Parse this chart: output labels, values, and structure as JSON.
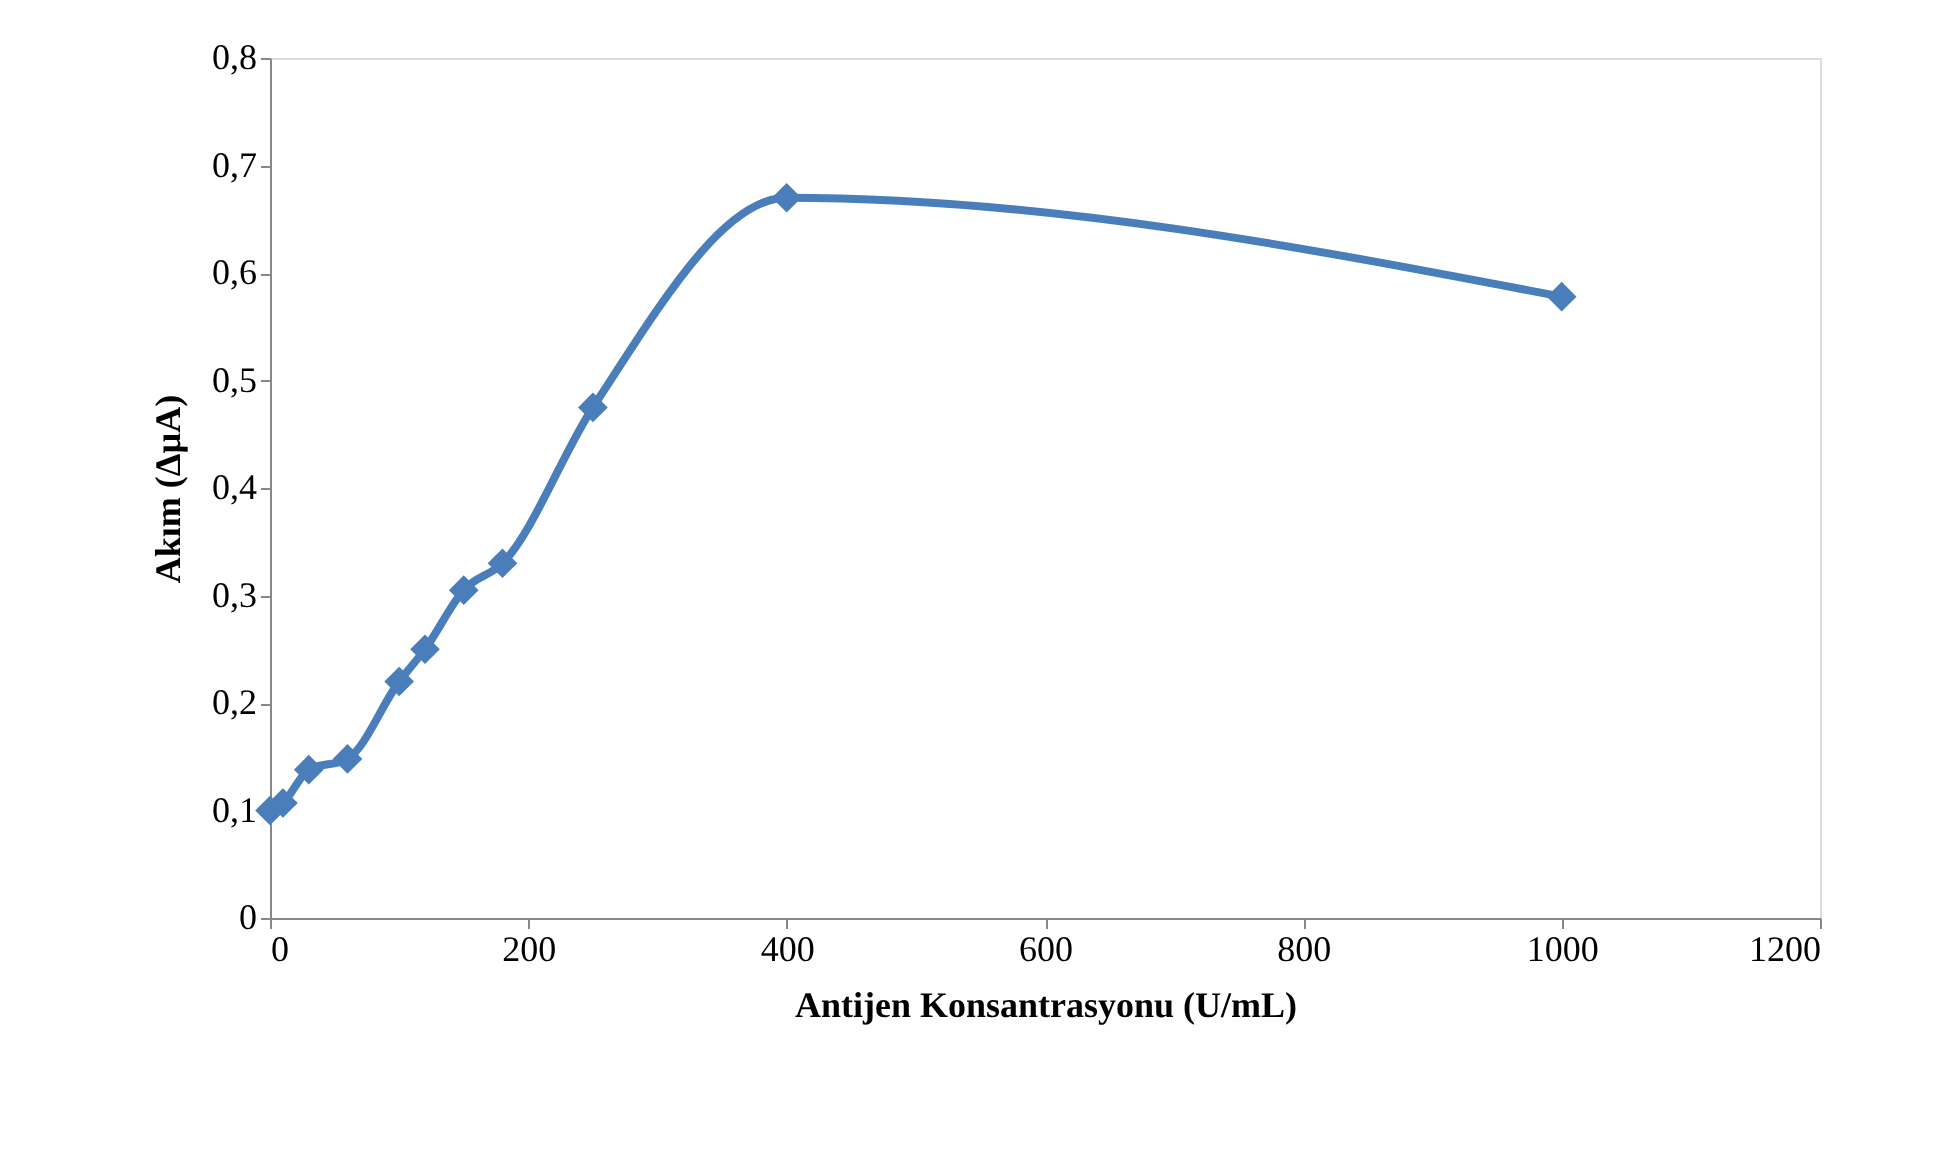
{
  "chart_data": {
    "type": "line",
    "xlabel": "Antijen Konsantrasyonu (U/mL)",
    "ylabel": "Akım (ΔµA)",
    "x": [
      0,
      10,
      30,
      60,
      100,
      120,
      150,
      180,
      250,
      400,
      1000
    ],
    "series": [
      {
        "color": "#4a7ebb",
        "values": [
          0.1,
          0.107,
          0.138,
          0.148,
          0.22,
          0.25,
          0.305,
          0.33,
          0.475,
          0.67,
          0.578
        ]
      }
    ],
    "xlim": [
      0,
      1200
    ],
    "xticks": [
      0,
      200,
      400,
      600,
      800,
      1000,
      1200
    ],
    "ylim": [
      0,
      0.8
    ],
    "yticks": [
      {
        "value": 0,
        "label": "0"
      },
      {
        "value": 0.1,
        "label": "0,1"
      },
      {
        "value": 0.2,
        "label": "0,2"
      },
      {
        "value": 0.3,
        "label": "0,3"
      },
      {
        "value": 0.4,
        "label": "0,4"
      },
      {
        "value": 0.5,
        "label": "0,5"
      },
      {
        "value": 0.6,
        "label": "0,6"
      },
      {
        "value": 0.7,
        "label": "0,7"
      },
      {
        "value": 0.8,
        "label": "0,8"
      }
    ],
    "grid": false,
    "marker": "diamond",
    "line_style": "solid"
  }
}
